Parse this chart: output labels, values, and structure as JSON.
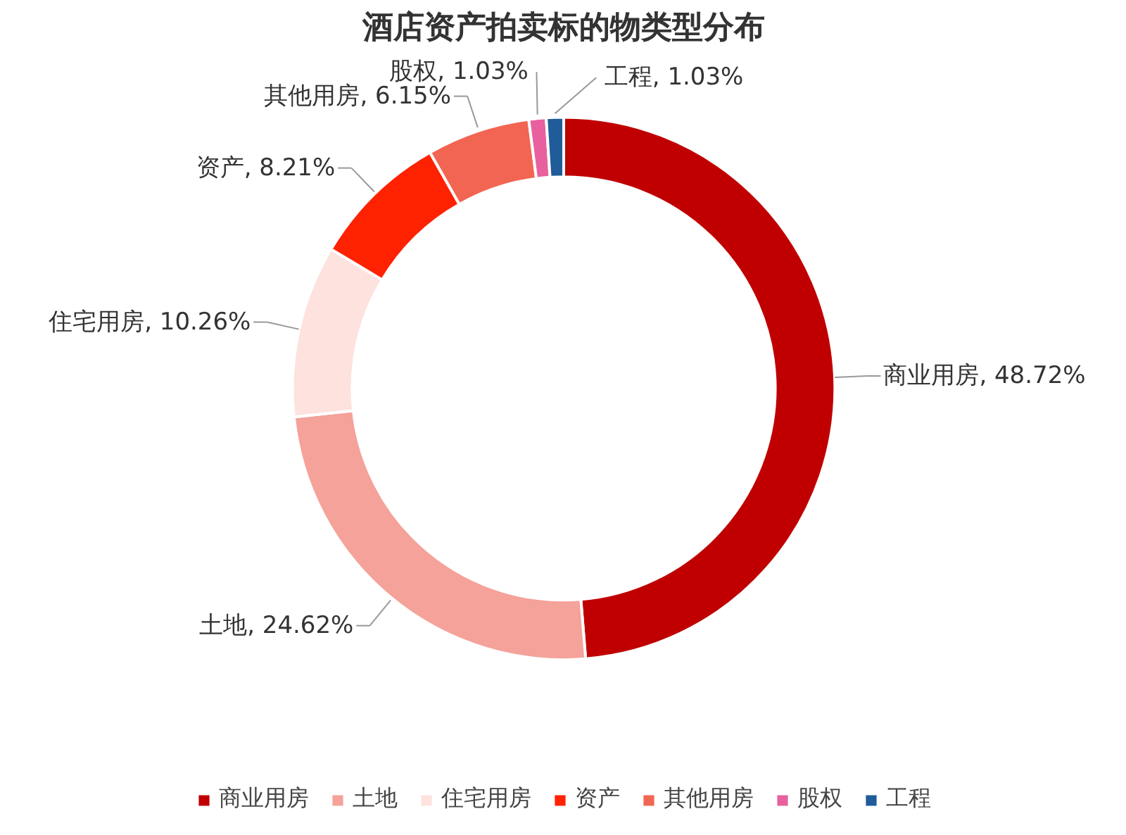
{
  "chart_data": {
    "type": "donut",
    "title": "酒店资产拍卖标的物类型分布",
    "categories": [
      "商业用房",
      "土地",
      "住宅用房",
      "资产",
      "其他用房",
      "股权",
      "工程"
    ],
    "values": [
      48.72,
      24.62,
      10.26,
      8.21,
      6.15,
      1.03,
      1.03
    ],
    "colors": [
      "#c00000",
      "#f4a29a",
      "#fde2de",
      "#ff2200",
      "#f26552",
      "#e8609e",
      "#1f5c99"
    ],
    "value_labels": [
      "商业用房, 48.72%",
      "土地, 24.62%",
      "住宅用房, 10.26%",
      "资产, 8.21%",
      "其他用房, 6.15%",
      "股权, 1.03%",
      "工程, 1.03%"
    ],
    "legend": "bottom"
  }
}
